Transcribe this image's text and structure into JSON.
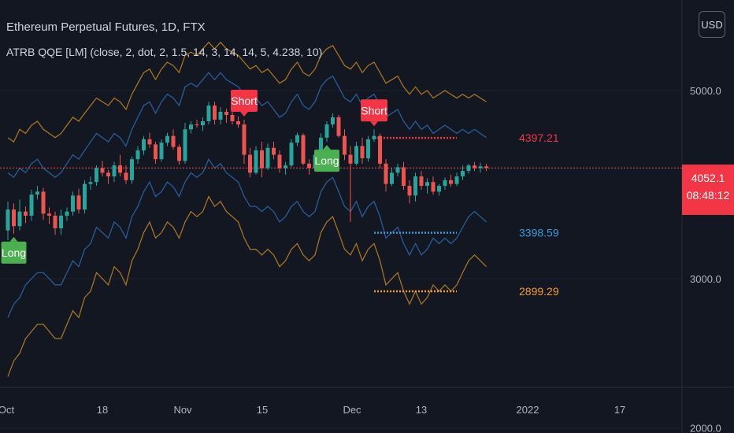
{
  "header": {
    "title": "Ethereum Perpetual Futures, 1D, FTX",
    "indicator": "ATRB QQE [LM] (close, 2, dot, 2, 1.5, 14, 3, 14, 14, 5, 4.238, 10)",
    "currency_button": "USD"
  },
  "price_tag": {
    "price": "4052.1",
    "countdown": "08:48:12"
  },
  "colors": {
    "background": "#131722",
    "up": "#26a69a",
    "down": "#ef5350",
    "inner_band": "#2962a3",
    "outer_band": "#b07a22",
    "short_label": "#f23645",
    "long_label": "#4caf50",
    "upper_level": "#f23645",
    "mid_level": "#3a9bd8",
    "lower_level": "#f59c2f"
  },
  "chart_data": {
    "type": "candlestick",
    "y_axis": {
      "ticks": [
        "2000.0",
        "3000.0",
        "5000.0"
      ],
      "scale": "log",
      "range": [
        1950,
        5700
      ]
    },
    "x_axis": {
      "ticks": [
        "Oct",
        "18",
        "Nov",
        "15",
        "Dec",
        "13",
        "2022",
        "17"
      ]
    },
    "candles": [
      {
        "o": 3420,
        "h": 3700,
        "l": 3330,
        "c": 3620
      },
      {
        "o": 3620,
        "h": 3680,
        "l": 3390,
        "c": 3460
      },
      {
        "o": 3460,
        "h": 3720,
        "l": 3420,
        "c": 3600
      },
      {
        "o": 3600,
        "h": 3650,
        "l": 3490,
        "c": 3560
      },
      {
        "o": 3560,
        "h": 3820,
        "l": 3510,
        "c": 3770
      },
      {
        "o": 3770,
        "h": 3860,
        "l": 3720,
        "c": 3800
      },
      {
        "o": 3800,
        "h": 3840,
        "l": 3520,
        "c": 3580
      },
      {
        "o": 3580,
        "h": 3640,
        "l": 3480,
        "c": 3560
      },
      {
        "o": 3560,
        "h": 3600,
        "l": 3380,
        "c": 3440
      },
      {
        "o": 3440,
        "h": 3620,
        "l": 3380,
        "c": 3560
      },
      {
        "o": 3560,
        "h": 3640,
        "l": 3510,
        "c": 3600
      },
      {
        "o": 3600,
        "h": 3800,
        "l": 3560,
        "c": 3760
      },
      {
        "o": 3760,
        "h": 3830,
        "l": 3580,
        "c": 3620
      },
      {
        "o": 3620,
        "h": 3920,
        "l": 3580,
        "c": 3880
      },
      {
        "o": 3880,
        "h": 3960,
        "l": 3820,
        "c": 3900
      },
      {
        "o": 3900,
        "h": 4080,
        "l": 3860,
        "c": 4050
      },
      {
        "o": 4050,
        "h": 4130,
        "l": 3960,
        "c": 4000
      },
      {
        "o": 4000,
        "h": 4030,
        "l": 3880,
        "c": 3960
      },
      {
        "o": 3960,
        "h": 4120,
        "l": 3900,
        "c": 4080
      },
      {
        "o": 4080,
        "h": 4200,
        "l": 3960,
        "c": 4000
      },
      {
        "o": 4000,
        "h": 4080,
        "l": 3880,
        "c": 3920
      },
      {
        "o": 3920,
        "h": 4180,
        "l": 3880,
        "c": 4150
      },
      {
        "o": 4150,
        "h": 4300,
        "l": 4100,
        "c": 4250
      },
      {
        "o": 4250,
        "h": 4420,
        "l": 4200,
        "c": 4380
      },
      {
        "o": 4380,
        "h": 4460,
        "l": 4280,
        "c": 4320
      },
      {
        "o": 4320,
        "h": 4350,
        "l": 4100,
        "c": 4150
      },
      {
        "o": 4150,
        "h": 4380,
        "l": 4120,
        "c": 4340
      },
      {
        "o": 4340,
        "h": 4460,
        "l": 4300,
        "c": 4420
      },
      {
        "o": 4420,
        "h": 4500,
        "l": 4260,
        "c": 4290
      },
      {
        "o": 4290,
        "h": 4320,
        "l": 4090,
        "c": 4130
      },
      {
        "o": 4130,
        "h": 4580,
        "l": 4100,
        "c": 4500
      },
      {
        "o": 4500,
        "h": 4600,
        "l": 4450,
        "c": 4560
      },
      {
        "o": 4560,
        "h": 4620,
        "l": 4520,
        "c": 4550
      },
      {
        "o": 4550,
        "h": 4650,
        "l": 4480,
        "c": 4600
      },
      {
        "o": 4600,
        "h": 4850,
        "l": 4560,
        "c": 4800
      },
      {
        "o": 4800,
        "h": 4850,
        "l": 4560,
        "c": 4620
      },
      {
        "o": 4620,
        "h": 4780,
        "l": 4560,
        "c": 4720
      },
      {
        "o": 4720,
        "h": 4760,
        "l": 4580,
        "c": 4680
      },
      {
        "o": 4680,
        "h": 4720,
        "l": 4560,
        "c": 4600
      },
      {
        "o": 4600,
        "h": 4660,
        "l": 4520,
        "c": 4560
      },
      {
        "o": 4560,
        "h": 4620,
        "l": 4100,
        "c": 4200
      },
      {
        "o": 4200,
        "h": 4280,
        "l": 3950,
        "c": 4000
      },
      {
        "o": 4000,
        "h": 4300,
        "l": 3980,
        "c": 4250
      },
      {
        "o": 4250,
        "h": 4350,
        "l": 3950,
        "c": 4050
      },
      {
        "o": 4050,
        "h": 4330,
        "l": 4030,
        "c": 4280
      },
      {
        "o": 4280,
        "h": 4350,
        "l": 4150,
        "c": 4200
      },
      {
        "o": 4200,
        "h": 4250,
        "l": 4000,
        "c": 4050
      },
      {
        "o": 4050,
        "h": 4120,
        "l": 3980,
        "c": 4080
      },
      {
        "o": 4080,
        "h": 4380,
        "l": 4060,
        "c": 4340
      },
      {
        "o": 4340,
        "h": 4460,
        "l": 4300,
        "c": 4430
      },
      {
        "o": 4430,
        "h": 4450,
        "l": 4080,
        "c": 4100
      },
      {
        "o": 4100,
        "h": 4150,
        "l": 3980,
        "c": 4050
      },
      {
        "o": 4050,
        "h": 4250,
        "l": 4020,
        "c": 4200
      },
      {
        "o": 4200,
        "h": 4450,
        "l": 4150,
        "c": 4400
      },
      {
        "o": 4400,
        "h": 4600,
        "l": 4350,
        "c": 4560
      },
      {
        "o": 4560,
        "h": 4700,
        "l": 4520,
        "c": 4650
      },
      {
        "o": 4650,
        "h": 4680,
        "l": 4400,
        "c": 4420
      },
      {
        "o": 4420,
        "h": 4500,
        "l": 4140,
        "c": 4200
      },
      {
        "o": 4200,
        "h": 4300,
        "l": 3500,
        "c": 4100
      },
      {
        "o": 4100,
        "h": 4350,
        "l": 4080,
        "c": 4300
      },
      {
        "o": 4300,
        "h": 4400,
        "l": 4100,
        "c": 4160
      },
      {
        "o": 4160,
        "h": 4420,
        "l": 4120,
        "c": 4380
      },
      {
        "o": 4380,
        "h": 4500,
        "l": 4350,
        "c": 4420
      },
      {
        "o": 4420,
        "h": 4450,
        "l": 4050,
        "c": 4100
      },
      {
        "o": 4100,
        "h": 4150,
        "l": 3800,
        "c": 3880
      },
      {
        "o": 3880,
        "h": 4050,
        "l": 3860,
        "c": 4000
      },
      {
        "o": 4000,
        "h": 4100,
        "l": 3960,
        "c": 4060
      },
      {
        "o": 4060,
        "h": 4120,
        "l": 3820,
        "c": 3860
      },
      {
        "o": 3860,
        "h": 3920,
        "l": 3680,
        "c": 3760
      },
      {
        "o": 3760,
        "h": 4000,
        "l": 3700,
        "c": 3960
      },
      {
        "o": 3960,
        "h": 4020,
        "l": 3820,
        "c": 3860
      },
      {
        "o": 3860,
        "h": 3940,
        "l": 3780,
        "c": 3900
      },
      {
        "o": 3900,
        "h": 3960,
        "l": 3770,
        "c": 3800
      },
      {
        "o": 3800,
        "h": 3880,
        "l": 3760,
        "c": 3860
      },
      {
        "o": 3860,
        "h": 3950,
        "l": 3820,
        "c": 3920
      },
      {
        "o": 3920,
        "h": 3980,
        "l": 3850,
        "c": 3880
      },
      {
        "o": 3880,
        "h": 4000,
        "l": 3860,
        "c": 3960
      },
      {
        "o": 3960,
        "h": 4080,
        "l": 3920,
        "c": 4020
      },
      {
        "o": 4020,
        "h": 4100,
        "l": 3990,
        "c": 4080
      },
      {
        "o": 4080,
        "h": 4120,
        "l": 4020,
        "c": 4050
      },
      {
        "o": 4050,
        "h": 4110,
        "l": 4000,
        "c": 4070
      },
      {
        "o": 4070,
        "h": 4100,
        "l": 4020,
        "c": 4052
      }
    ],
    "bands": {
      "outer_upper": [
        4400,
        4350,
        4500,
        4450,
        4550,
        4600,
        4500,
        4450,
        4400,
        4450,
        4550,
        4650,
        4600,
        4700,
        4800,
        4900,
        4850,
        4800,
        4900,
        4850,
        4750,
        4950,
        5100,
        5250,
        5300,
        5150,
        5300,
        5400,
        5350,
        5250,
        5500,
        5550,
        5500,
        5600,
        5700,
        5600,
        5700,
        5600,
        5550,
        5500,
        5400,
        5300,
        5350,
        5250,
        5300,
        5200,
        5100,
        5150,
        5300,
        5400,
        5250,
        5200,
        5300,
        5500,
        5600,
        5650,
        5500,
        5350,
        5300,
        5400,
        5250,
        5350,
        5400,
        5250,
        5100,
        5150,
        5200,
        5050,
        4950,
        5050,
        4950,
        5000,
        4900,
        4950,
        5000,
        4950,
        4900,
        4950,
        4900,
        4950,
        4900,
        4850
      ],
      "inner_upper": [
        4000,
        3950,
        4050,
        4000,
        4100,
        4150,
        4050,
        4000,
        3950,
        4000,
        4100,
        4200,
        4150,
        4250,
        4350,
        4450,
        4400,
        4350,
        4450,
        4400,
        4300,
        4500,
        4650,
        4800,
        4850,
        4700,
        4850,
        4950,
        4900,
        4800,
        5050,
        5100,
        5050,
        5150,
        5250,
        5150,
        5250,
        5150,
        5100,
        5050,
        4950,
        4850,
        4900,
        4800,
        4850,
        4750,
        4650,
        4700,
        4850,
        4950,
        4800,
        4750,
        4850,
        5050,
        5150,
        5200,
        5050,
        4900,
        4850,
        4950,
        4800,
        4900,
        4950,
        4800,
        4650,
        4700,
        4750,
        4600,
        4500,
        4600,
        4500,
        4550,
        4450,
        4500,
        4550,
        4500,
        4450,
        4500,
        4450,
        4500,
        4450,
        4400
      ],
      "inner_lower": [
        2700,
        2800,
        2850,
        2950,
        3000,
        3050,
        3050,
        3000,
        2950,
        2950,
        3050,
        3150,
        3100,
        3250,
        3300,
        3450,
        3400,
        3350,
        3500,
        3450,
        3350,
        3550,
        3650,
        3800,
        3900,
        3750,
        3800,
        3900,
        3850,
        3750,
        3900,
        4000,
        3950,
        4000,
        4150,
        4050,
        4100,
        4000,
        3950,
        3900,
        3750,
        3650,
        3650,
        3600,
        3650,
        3600,
        3500,
        3550,
        3650,
        3700,
        3600,
        3550,
        3600,
        3800,
        3900,
        3950,
        3800,
        3650,
        3600,
        3700,
        3550,
        3650,
        3700,
        3550,
        3350,
        3400,
        3450,
        3300,
        3200,
        3300,
        3200,
        3250,
        3350,
        3300,
        3350,
        3300,
        3350,
        3450,
        3550,
        3600,
        3550,
        3500
      ],
      "outer_lower": [
        2300,
        2400,
        2450,
        2550,
        2600,
        2650,
        2650,
        2600,
        2550,
        2550,
        2650,
        2750,
        2700,
        2850,
        2900,
        3050,
        3000,
        2950,
        3100,
        3050,
        2950,
        3150,
        3250,
        3400,
        3500,
        3350,
        3400,
        3500,
        3450,
        3350,
        3500,
        3600,
        3550,
        3600,
        3750,
        3650,
        3700,
        3600,
        3550,
        3500,
        3350,
        3250,
        3250,
        3200,
        3250,
        3200,
        3100,
        3150,
        3250,
        3300,
        3200,
        3150,
        3200,
        3400,
        3500,
        3550,
        3400,
        3250,
        3200,
        3300,
        3150,
        3250,
        3300,
        3150,
        2950,
        3000,
        3050,
        2900,
        2800,
        2900,
        2800,
        2850,
        2950,
        2900,
        2950,
        2900,
        2950,
        3050,
        3150,
        3200,
        3150,
        3100
      ]
    },
    "levels": [
      {
        "label": "4397.21",
        "value": 4397.21,
        "from_index": 62,
        "to_index": 76,
        "color": "#f23645"
      },
      {
        "label": "3398.59",
        "value": 3398.59,
        "from_index": 62,
        "to_index": 76,
        "color": "#3a9bd8"
      },
      {
        "label": "2899.29",
        "value": 2899.29,
        "from_index": 62,
        "to_index": 76,
        "color": "#f59c2f"
      }
    ],
    "current_price_line": 4052.1,
    "signals": [
      {
        "type": "Short",
        "index": 40
      },
      {
        "type": "Short",
        "index": 62
      },
      {
        "type": "Long",
        "index": 1
      },
      {
        "type": "Long",
        "index": 54
      }
    ],
    "grid": true
  }
}
